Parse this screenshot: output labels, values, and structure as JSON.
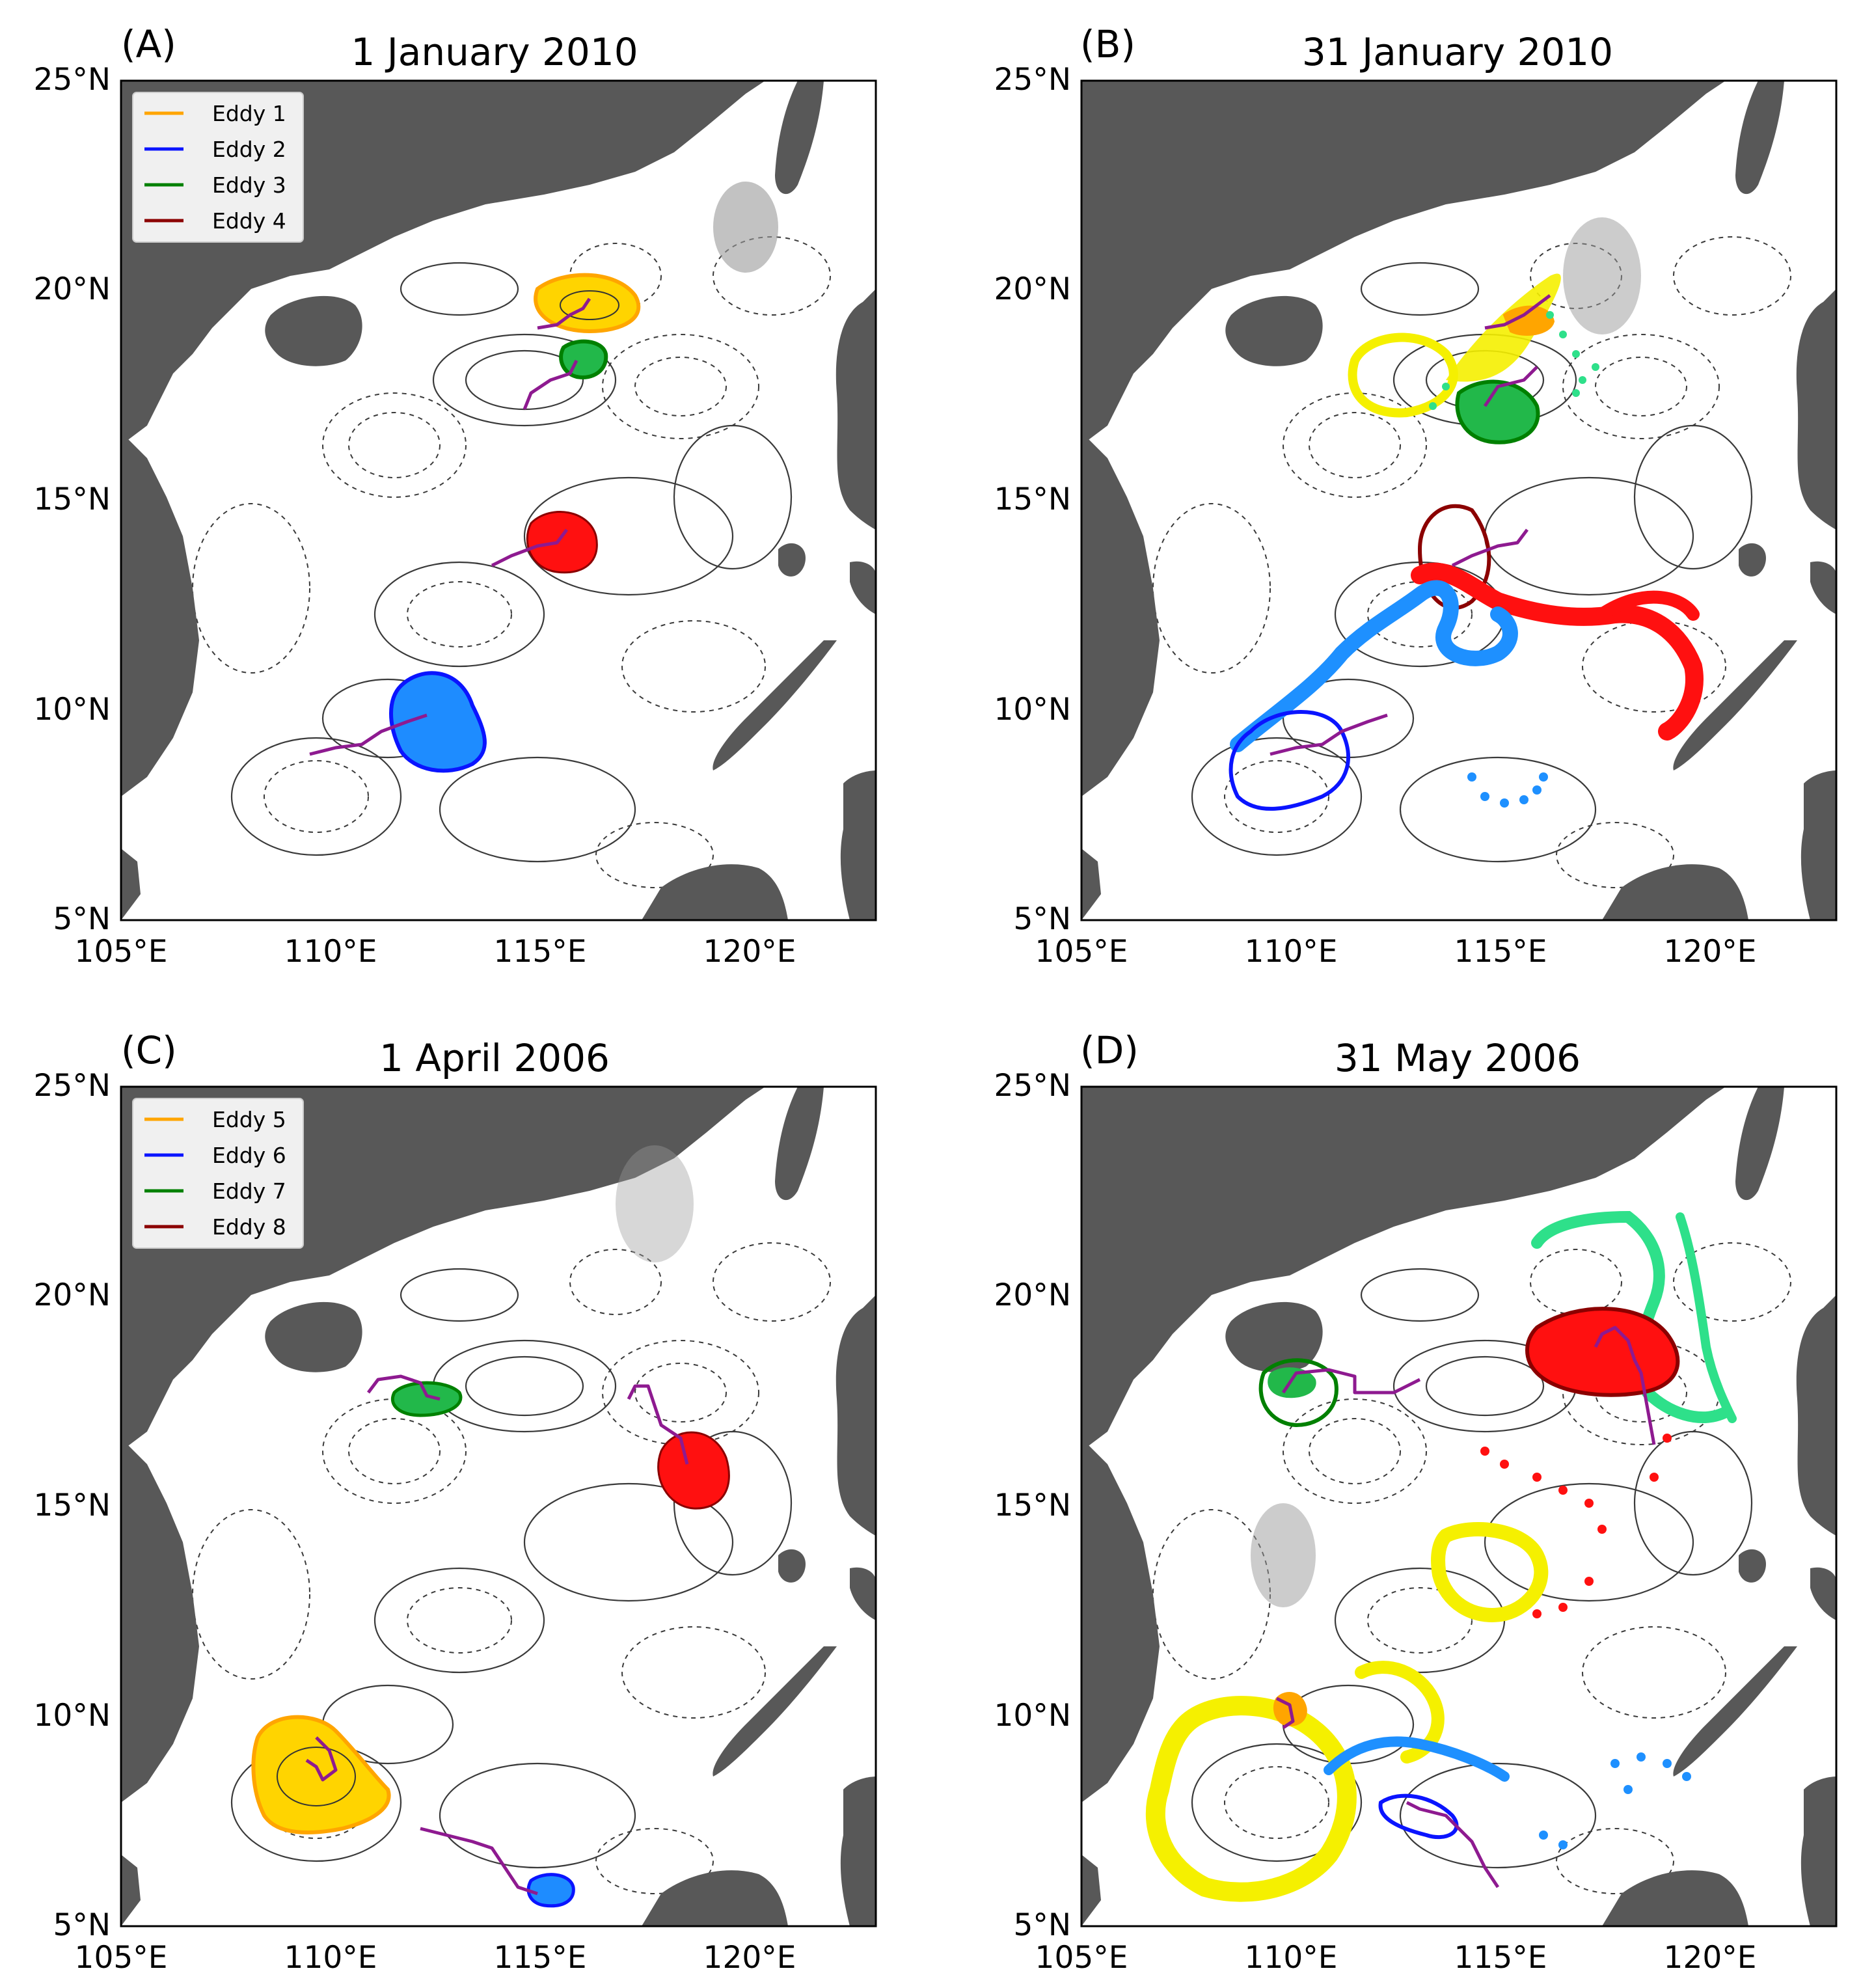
{
  "figure": {
    "panels": [
      {
        "id": "A",
        "label": "(A)",
        "title": "1 January 2010",
        "legend": [
          {
            "label": "Eddy 1",
            "color": "#ffa500"
          },
          {
            "label": "Eddy 2",
            "color": "#0a14ff"
          },
          {
            "label": "Eddy 3",
            "color": "#008000"
          },
          {
            "label": "Eddy 4",
            "color": "#8b0000"
          }
        ]
      },
      {
        "id": "B",
        "label": "(B)",
        "title": "31 January 2010",
        "legend": []
      },
      {
        "id": "C",
        "label": "(C)",
        "title": "1 April 2006",
        "legend": [
          {
            "label": "Eddy 5",
            "color": "#ffa500"
          },
          {
            "label": "Eddy 6",
            "color": "#0a14ff"
          },
          {
            "label": "Eddy 7",
            "color": "#008000"
          },
          {
            "label": "Eddy 8",
            "color": "#8b0000"
          }
        ]
      },
      {
        "id": "D",
        "label": "(D)",
        "title": "31 May 2006",
        "legend": []
      }
    ],
    "axes": {
      "lon_ticks": [
        "105°E",
        "110°E",
        "115°E",
        "120°E"
      ],
      "lat_ticks": [
        "25°N",
        "20°N",
        "15°N",
        "10°N",
        "5°N"
      ],
      "lon_range": [
        105,
        123
      ],
      "lat_range": [
        5,
        25
      ]
    },
    "colors": {
      "land": "#585858",
      "track": "#8e1a90",
      "yellow_particles": "#f5f000",
      "blue_particles": "#1e90ff",
      "red_particles": "#ff1010",
      "green_particles": "#2ee08a",
      "eddy_orange": "#ffa500",
      "eddy_blue": "#0a14ff",
      "eddy_green": "#008000",
      "eddy_darkred": "#8b0000"
    }
  }
}
